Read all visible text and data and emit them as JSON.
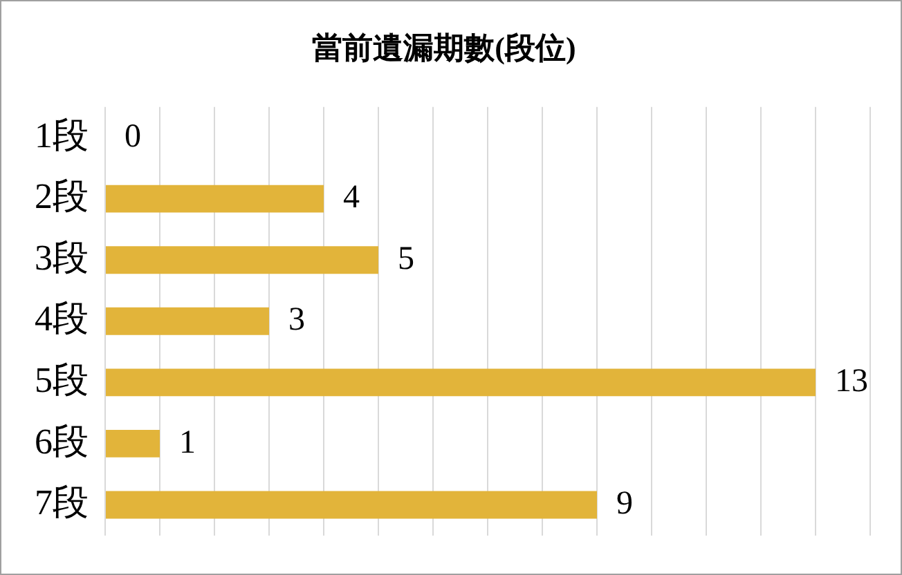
{
  "chart_data": {
    "type": "bar",
    "orientation": "horizontal",
    "title": "當前遺漏期數(段位)",
    "categories": [
      "1段",
      "2段",
      "3段",
      "4段",
      "5段",
      "6段",
      "7段"
    ],
    "values": [
      0,
      4,
      5,
      3,
      13,
      1,
      9
    ],
    "color": "#e2b43a",
    "xlim": [
      0,
      14
    ],
    "xticks": [
      {
        "value": 0,
        "label": null
      },
      {
        "value": 1,
        "label": null
      },
      {
        "value": 2,
        "label": null
      },
      {
        "value": 3,
        "label": null
      },
      {
        "value": 4,
        "label": null
      },
      {
        "value": 5,
        "label": null
      },
      {
        "value": 6,
        "label": null
      },
      {
        "value": 7,
        "label": null
      },
      {
        "value": 8,
        "label": null
      },
      {
        "value": 9,
        "label": null
      },
      {
        "value": 10,
        "label": null
      },
      {
        "value": 11,
        "label": null
      },
      {
        "value": 12,
        "label": null
      },
      {
        "value": 13,
        "label": null
      },
      {
        "value": 14,
        "label": null
      }
    ],
    "grid": "x",
    "tick_labels": "y",
    "data_labels": true,
    "legend": false
  }
}
